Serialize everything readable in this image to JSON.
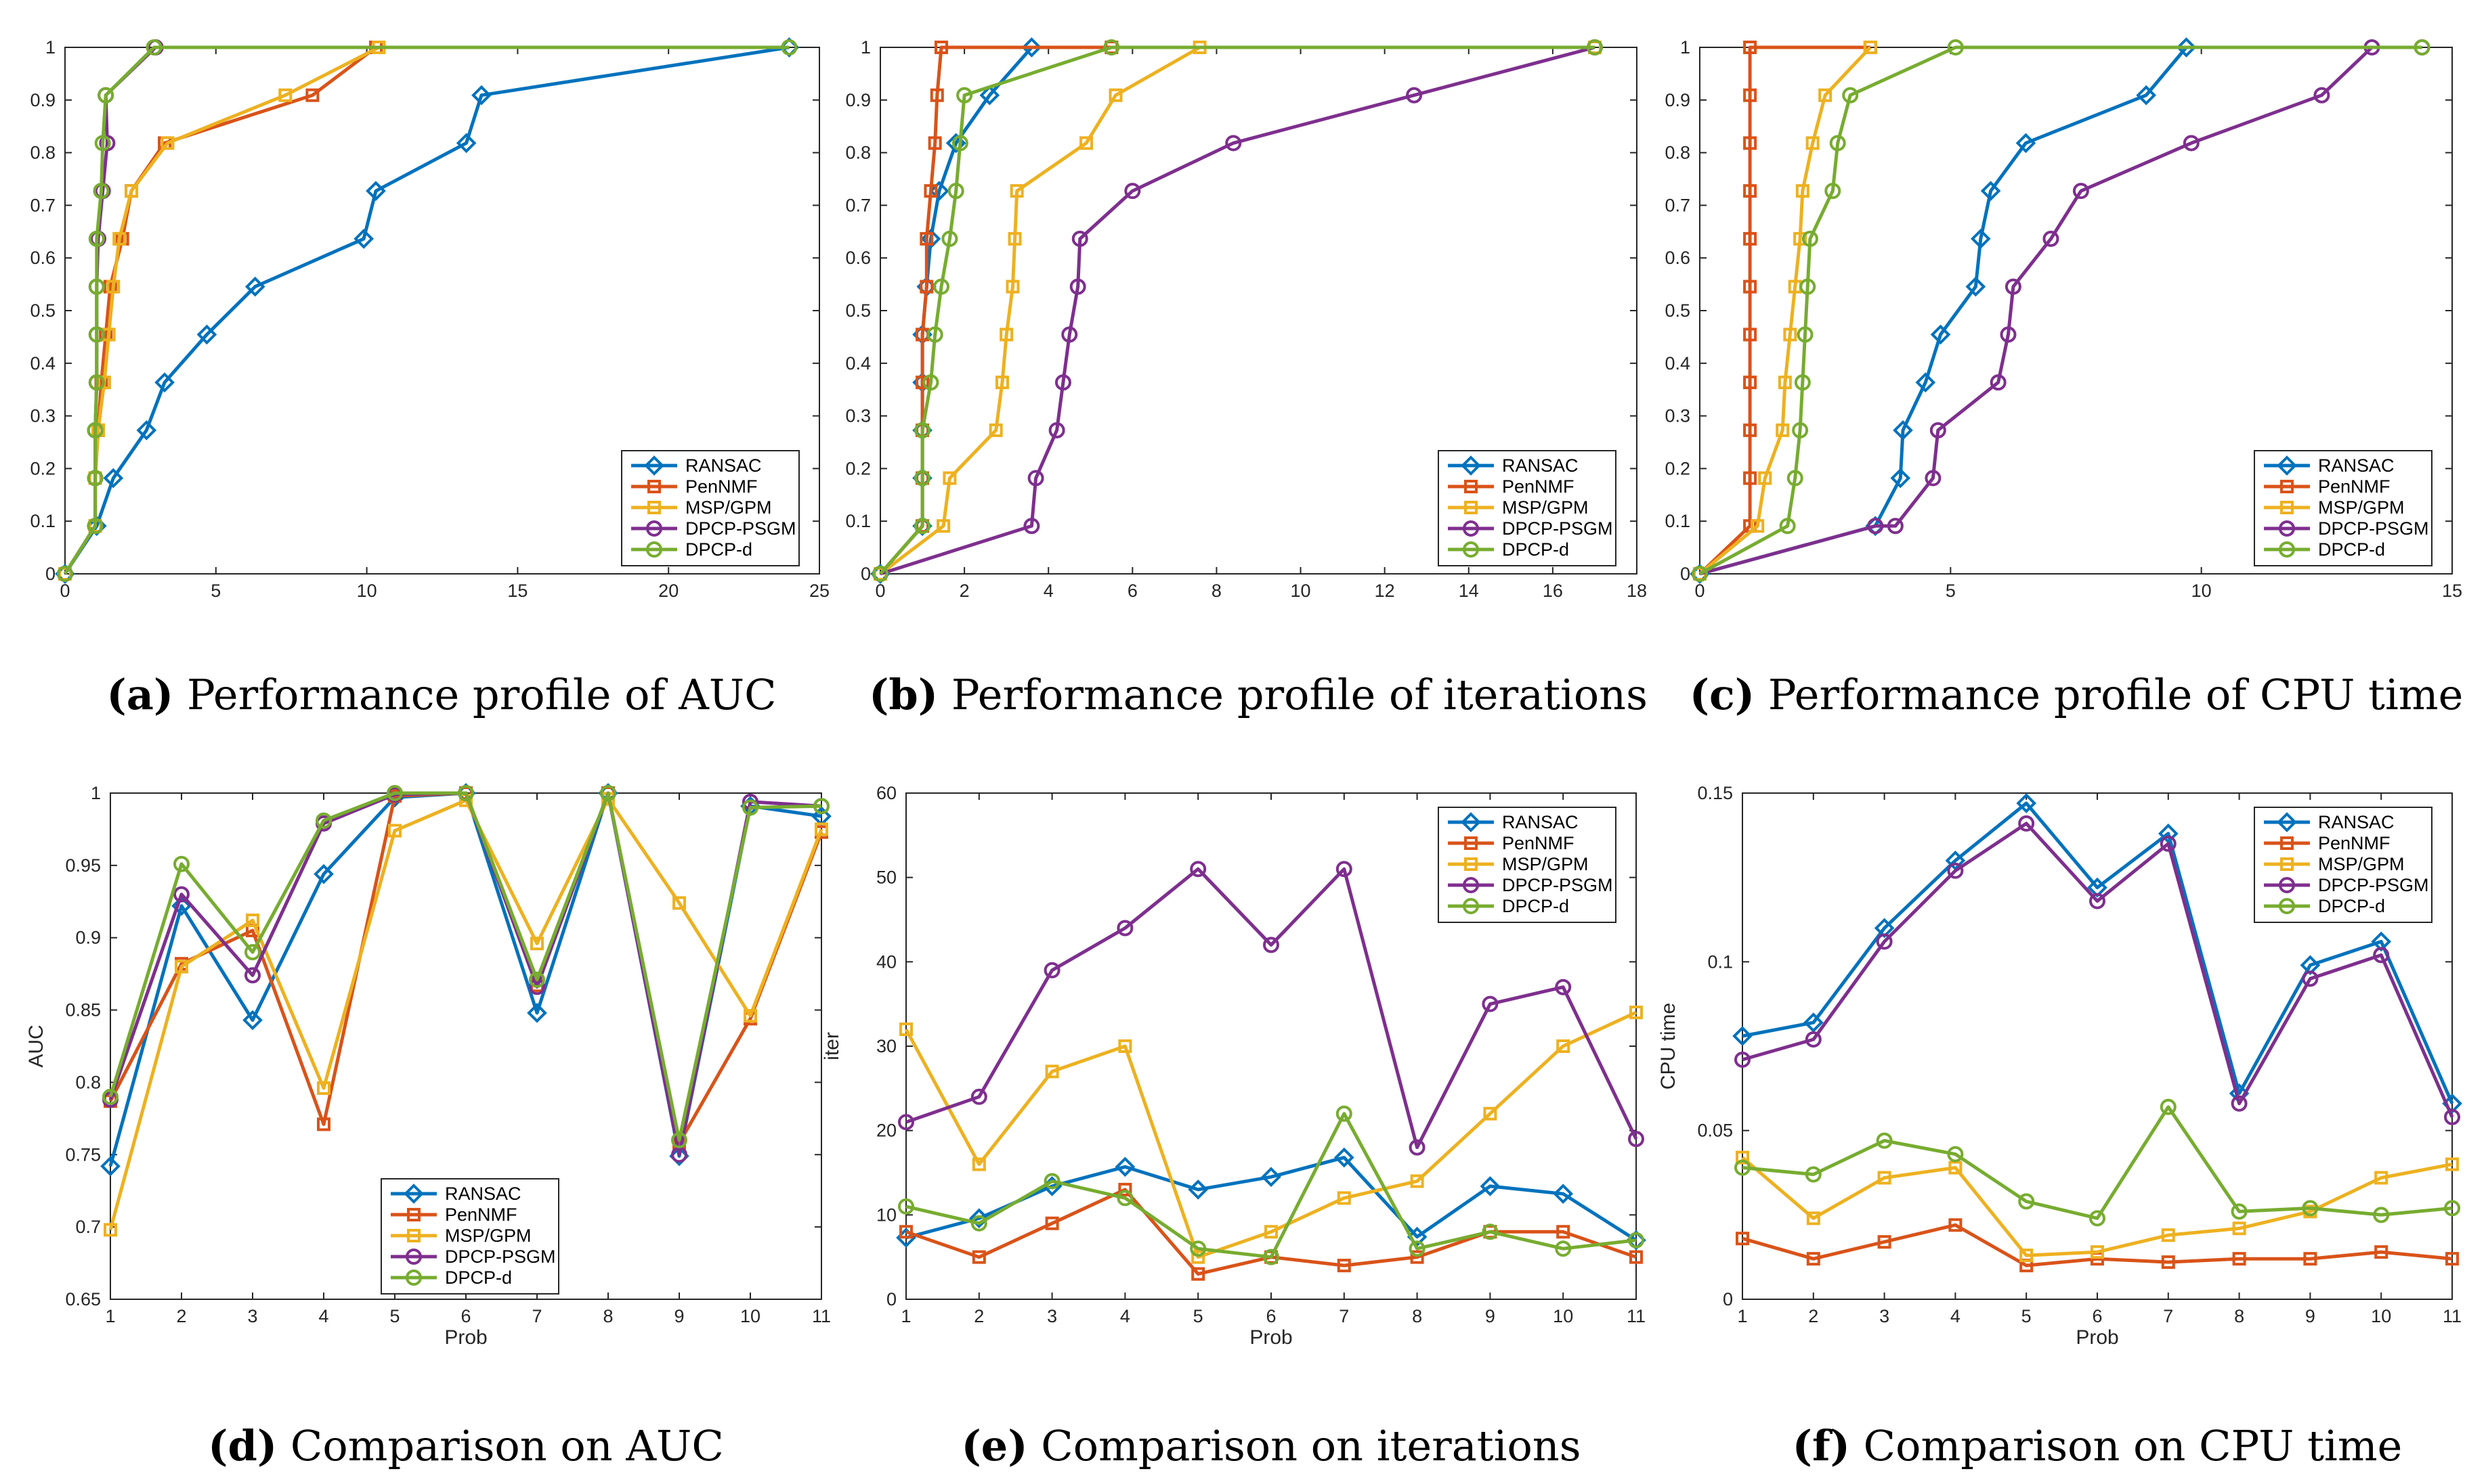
{
  "figure": {
    "series_colors": {
      "RANSAC": "#0072BD",
      "PenNMF": "#D95319",
      "MSP/GPM": "#EDB120",
      "DPCP-PSGM": "#7E2F8E",
      "DPCP-d": "#77AC30"
    },
    "series_markers": {
      "RANSAC": "diamond",
      "PenNMF": "square",
      "MSP/GPM": "square",
      "DPCP-PSGM": "circle",
      "DPCP-d": "circle"
    }
  },
  "chart_data": [
    {
      "id": "a",
      "type": "line",
      "caption_label": "(a)",
      "caption_text": "Performance profile of AUC",
      "title": "Performance profile of AUC",
      "xlabel": "",
      "ylabel": "",
      "xlim": [
        0,
        25
      ],
      "ylim": [
        0,
        1
      ],
      "xticks": [
        0,
        5,
        10,
        15,
        20,
        25
      ],
      "yticks": [
        0,
        0.1,
        0.2,
        0.3,
        0.4,
        0.5,
        0.6,
        0.7,
        0.8,
        0.9,
        1
      ],
      "legend": "bottom-right",
      "series": [
        {
          "name": "RANSAC",
          "x": [
            0,
            1.05,
            1.6,
            2.7,
            3.3,
            4.7,
            6.3,
            9.9,
            10.3,
            13.3,
            13.8,
            24
          ],
          "y": [
            0,
            0.0909,
            0.1818,
            0.2727,
            0.3636,
            0.4545,
            0.5455,
            0.6364,
            0.7273,
            0.8182,
            0.9091,
            1
          ]
        },
        {
          "name": "PenNMF",
          "x": [
            0,
            1.0,
            1.0,
            1.1,
            1.2,
            1.35,
            1.5,
            1.9,
            2.2,
            3.3,
            8.2,
            10.3
          ],
          "y": [
            0,
            0.0909,
            0.1818,
            0.2727,
            0.3636,
            0.4545,
            0.5455,
            0.6364,
            0.7273,
            0.8182,
            0.9091,
            1
          ]
        },
        {
          "name": "MSP/GPM",
          "x": [
            0,
            1.0,
            1.0,
            1.1,
            1.3,
            1.45,
            1.6,
            1.8,
            2.2,
            3.4,
            7.3,
            10.4
          ],
          "y": [
            0,
            0.0909,
            0.1818,
            0.2727,
            0.3636,
            0.4545,
            0.5455,
            0.6364,
            0.7273,
            0.8182,
            0.9091,
            1
          ]
        },
        {
          "name": "DPCP-PSGM",
          "x": [
            0,
            1.0,
            1.0,
            1.0,
            1.05,
            1.05,
            1.05,
            1.1,
            1.25,
            1.4,
            1.35,
            3.0
          ],
          "y": [
            0,
            0.0909,
            0.1818,
            0.2727,
            0.3636,
            0.4545,
            0.5455,
            0.6364,
            0.7273,
            0.8182,
            0.9091,
            1
          ]
        },
        {
          "name": "DPCP-d",
          "x": [
            0,
            1.0,
            1.0,
            1.0,
            1.05,
            1.05,
            1.05,
            1.05,
            1.2,
            1.25,
            1.35,
            2.95,
            24
          ],
          "y": [
            0,
            0.0909,
            0.1818,
            0.2727,
            0.3636,
            0.4545,
            0.5455,
            0.6364,
            0.7273,
            0.8182,
            0.9091,
            1,
            1
          ]
        }
      ]
    },
    {
      "id": "b",
      "type": "line",
      "caption_label": "(b)",
      "caption_text": "Performance profile of iterations",
      "title": "Performance profile of iterations",
      "xlabel": "",
      "ylabel": "",
      "xlim": [
        0,
        18
      ],
      "ylim": [
        0,
        1
      ],
      "xticks": [
        0,
        2,
        4,
        6,
        8,
        10,
        12,
        14,
        16,
        18
      ],
      "yticks": [
        0,
        0.1,
        0.2,
        0.3,
        0.4,
        0.5,
        0.6,
        0.7,
        0.8,
        0.9,
        1
      ],
      "legend": "bottom-right",
      "series": [
        {
          "name": "RANSAC",
          "x": [
            0,
            1.0,
            1.0,
            1.0,
            1.0,
            1.0,
            1.1,
            1.2,
            1.4,
            1.8,
            2.6,
            3.6
          ],
          "y": [
            0,
            0.0909,
            0.1818,
            0.2727,
            0.3636,
            0.4545,
            0.5455,
            0.6364,
            0.7273,
            0.8182,
            0.9091,
            1
          ]
        },
        {
          "name": "PenNMF",
          "x": [
            0,
            1.0,
            1.0,
            1.0,
            1.0,
            1.0,
            1.1,
            1.1,
            1.2,
            1.3,
            1.35,
            1.45,
            5.5
          ],
          "y": [
            0,
            0.0909,
            0.1818,
            0.2727,
            0.3636,
            0.4545,
            0.5455,
            0.6364,
            0.7273,
            0.8182,
            0.9091,
            1,
            1
          ]
        },
        {
          "name": "MSP/GPM",
          "x": [
            0,
            1.5,
            1.65,
            2.75,
            2.9,
            3.0,
            3.15,
            3.2,
            3.25,
            4.9,
            5.6,
            7.6,
            17
          ],
          "y": [
            0,
            0.0909,
            0.1818,
            0.2727,
            0.3636,
            0.4545,
            0.5455,
            0.6364,
            0.7273,
            0.8182,
            0.9091,
            1,
            1
          ]
        },
        {
          "name": "DPCP-PSGM",
          "x": [
            0,
            3.6,
            3.7,
            4.2,
            4.35,
            4.5,
            4.7,
            4.75,
            6.0,
            8.4,
            12.7,
            17
          ],
          "y": [
            0,
            0.0909,
            0.1818,
            0.2727,
            0.3636,
            0.4545,
            0.5455,
            0.6364,
            0.7273,
            0.8182,
            0.9091,
            1
          ]
        },
        {
          "name": "DPCP-d",
          "x": [
            0,
            1.0,
            1.0,
            1.0,
            1.2,
            1.3,
            1.45,
            1.65,
            1.8,
            1.9,
            2.0,
            5.5,
            17
          ],
          "y": [
            0,
            0.0909,
            0.1818,
            0.2727,
            0.3636,
            0.4545,
            0.5455,
            0.6364,
            0.7273,
            0.8182,
            0.9091,
            1,
            1
          ]
        }
      ]
    },
    {
      "id": "c",
      "type": "line",
      "caption_label": "(c)",
      "caption_text": "Performance profile of CPU time",
      "title": "Performance profile of CPU time",
      "xlabel": "",
      "ylabel": "",
      "xlim": [
        0,
        15
      ],
      "ylim": [
        0,
        1
      ],
      "xticks": [
        0,
        5,
        10,
        15
      ],
      "yticks": [
        0,
        0.1,
        0.2,
        0.3,
        0.4,
        0.5,
        0.6,
        0.7,
        0.8,
        0.9,
        1
      ],
      "legend": "bottom-right",
      "series": [
        {
          "name": "RANSAC",
          "x": [
            0,
            3.5,
            4.0,
            4.05,
            4.5,
            4.8,
            5.5,
            5.6,
            5.8,
            6.5,
            8.9,
            9.7
          ],
          "y": [
            0,
            0.0909,
            0.1818,
            0.2727,
            0.3636,
            0.4545,
            0.5455,
            0.6364,
            0.7273,
            0.8182,
            0.9091,
            1
          ]
        },
        {
          "name": "PenNMF",
          "x": [
            0,
            1.0,
            1.0,
            1.0,
            1.0,
            1.0,
            1.0,
            1.0,
            1.0,
            1.0,
            1.0,
            1.0,
            3.4
          ],
          "y": [
            0,
            0.0909,
            0.1818,
            0.2727,
            0.3636,
            0.4545,
            0.5455,
            0.6364,
            0.7273,
            0.8182,
            0.9091,
            1,
            1
          ]
        },
        {
          "name": "MSP/GPM",
          "x": [
            0,
            1.15,
            1.3,
            1.65,
            1.7,
            1.8,
            1.9,
            2.0,
            2.05,
            2.25,
            2.5,
            3.4
          ],
          "y": [
            0,
            0.0909,
            0.1818,
            0.2727,
            0.3636,
            0.4545,
            0.5455,
            0.6364,
            0.7273,
            0.8182,
            0.9091,
            1
          ]
        },
        {
          "name": "DPCP-PSGM",
          "x": [
            0,
            3.5,
            3.9,
            4.65,
            4.75,
            5.95,
            6.15,
            6.25,
            7.0,
            7.6,
            9.8,
            12.4,
            13.4,
            14.4
          ],
          "y": [
            0,
            0.0909,
            0.0909,
            0.1818,
            0.2727,
            0.3636,
            0.4545,
            0.5455,
            0.6364,
            0.7273,
            0.8182,
            0.9091,
            1,
            1
          ]
        },
        {
          "name": "DPCP-d",
          "x": [
            0,
            1.75,
            1.9,
            2.0,
            2.05,
            2.1,
            2.15,
            2.2,
            2.65,
            2.75,
            3.0,
            5.1,
            14.4
          ],
          "y": [
            0,
            0.0909,
            0.1818,
            0.2727,
            0.3636,
            0.4545,
            0.5455,
            0.6364,
            0.7273,
            0.8182,
            0.9091,
            1,
            1
          ]
        }
      ]
    },
    {
      "id": "d",
      "type": "line",
      "caption_label": "(d)",
      "caption_text": "Comparison on AUC",
      "title": "Comparison on AUC",
      "xlabel": "Prob",
      "ylabel": "AUC",
      "xlim": [
        1,
        11
      ],
      "ylim": [
        0.65,
        1
      ],
      "xticks": [
        1,
        2,
        3,
        4,
        5,
        6,
        7,
        8,
        9,
        10,
        11
      ],
      "yticks": [
        0.65,
        0.7,
        0.75,
        0.8,
        0.85,
        0.9,
        0.95,
        1
      ],
      "legend": "bottom-center",
      "series": [
        {
          "name": "RANSAC",
          "x": [
            1,
            2,
            3,
            4,
            5,
            6,
            7,
            8,
            9,
            10,
            11
          ],
          "y": [
            0.742,
            0.922,
            0.843,
            0.944,
            0.997,
            1.0,
            0.848,
            1.0,
            0.749,
            0.991,
            0.984
          ]
        },
        {
          "name": "PenNMF",
          "x": [
            1,
            2,
            3,
            4,
            5,
            6,
            7,
            8,
            9,
            10,
            11
          ],
          "y": [
            0.787,
            0.882,
            0.905,
            0.771,
            0.998,
            1.0,
            0.867,
            1.0,
            0.758,
            0.844,
            0.973
          ]
        },
        {
          "name": "MSP/GPM",
          "x": [
            1,
            2,
            3,
            4,
            5,
            6,
            7,
            8,
            9,
            10,
            11
          ],
          "y": [
            0.698,
            0.88,
            0.912,
            0.796,
            0.974,
            0.995,
            0.896,
            0.996,
            0.924,
            0.846,
            0.975
          ]
        },
        {
          "name": "DPCP-PSGM",
          "x": [
            1,
            2,
            3,
            4,
            5,
            6,
            7,
            8,
            9,
            10,
            11
          ],
          "y": [
            0.788,
            0.93,
            0.874,
            0.979,
            0.999,
            1.0,
            0.866,
            1.0,
            0.75,
            0.994,
            0.991
          ]
        },
        {
          "name": "DPCP-d",
          "x": [
            1,
            2,
            3,
            4,
            5,
            6,
            7,
            8,
            9,
            10,
            11
          ],
          "y": [
            0.79,
            0.951,
            0.89,
            0.981,
            1.0,
            1.0,
            0.871,
            1.0,
            0.76,
            0.99,
            0.991
          ]
        }
      ]
    },
    {
      "id": "e",
      "type": "line",
      "caption_label": "(e)",
      "caption_text": "Comparison on iterations",
      "title": "Comparison on iterations",
      "xlabel": "Prob",
      "ylabel": "iter",
      "xlim": [
        1,
        11
      ],
      "ylim": [
        0,
        60
      ],
      "xticks": [
        1,
        2,
        3,
        4,
        5,
        6,
        7,
        8,
        9,
        10,
        11
      ],
      "yticks": [
        0,
        10,
        20,
        30,
        40,
        50,
        60
      ],
      "legend": "top-right",
      "series": [
        {
          "name": "RANSAC",
          "x": [
            1,
            2,
            3,
            4,
            5,
            6,
            7,
            8,
            9,
            10,
            11
          ],
          "y": [
            7.3,
            9.6,
            13.4,
            15.7,
            13.0,
            14.5,
            16.8,
            7.4,
            13.4,
            12.5,
            7.0
          ]
        },
        {
          "name": "PenNMF",
          "x": [
            1,
            2,
            3,
            4,
            5,
            6,
            7,
            8,
            9,
            10,
            11
          ],
          "y": [
            8,
            5,
            9,
            13,
            3,
            5,
            4,
            5,
            8,
            8,
            5
          ]
        },
        {
          "name": "MSP/GPM",
          "x": [
            1,
            2,
            3,
            4,
            5,
            6,
            7,
            8,
            9,
            10,
            11
          ],
          "y": [
            32,
            16,
            27,
            30,
            5,
            8,
            12,
            14,
            22,
            30,
            34
          ]
        },
        {
          "name": "DPCP-PSGM",
          "x": [
            1,
            2,
            3,
            4,
            5,
            6,
            7,
            8,
            9,
            10,
            11
          ],
          "y": [
            21,
            24,
            39,
            44,
            51,
            42,
            51,
            18,
            35,
            37,
            19
          ]
        },
        {
          "name": "DPCP-d",
          "x": [
            1,
            2,
            3,
            4,
            5,
            6,
            7,
            8,
            9,
            10,
            11
          ],
          "y": [
            11,
            9,
            14,
            12,
            6,
            5,
            22,
            6,
            8,
            6,
            7
          ]
        }
      ]
    },
    {
      "id": "f",
      "type": "line",
      "caption_label": "(f)",
      "caption_text": "Comparison on CPU time",
      "title": "Comparison on CPU time",
      "xlabel": "Prob",
      "ylabel": "CPU time",
      "xlim": [
        1,
        11
      ],
      "ylim": [
        0,
        0.15
      ],
      "xticks": [
        1,
        2,
        3,
        4,
        5,
        6,
        7,
        8,
        9,
        10,
        11
      ],
      "yticks": [
        0,
        0.05,
        0.1,
        0.15
      ],
      "legend": "top-right",
      "series": [
        {
          "name": "RANSAC",
          "x": [
            1,
            2,
            3,
            4,
            5,
            6,
            7,
            8,
            9,
            10,
            11
          ],
          "y": [
            0.078,
            0.082,
            0.11,
            0.13,
            0.147,
            0.122,
            0.138,
            0.061,
            0.099,
            0.106,
            0.058
          ]
        },
        {
          "name": "PenNMF",
          "x": [
            1,
            2,
            3,
            4,
            5,
            6,
            7,
            8,
            9,
            10,
            11
          ],
          "y": [
            0.018,
            0.012,
            0.017,
            0.022,
            0.01,
            0.012,
            0.011,
            0.012,
            0.012,
            0.014,
            0.012
          ]
        },
        {
          "name": "MSP/GPM",
          "x": [
            1,
            2,
            3,
            4,
            5,
            6,
            7,
            8,
            9,
            10,
            11
          ],
          "y": [
            0.042,
            0.024,
            0.036,
            0.039,
            0.013,
            0.014,
            0.019,
            0.021,
            0.026,
            0.036,
            0.04
          ]
        },
        {
          "name": "DPCP-PSGM",
          "x": [
            1,
            2,
            3,
            4,
            5,
            6,
            7,
            8,
            9,
            10,
            11
          ],
          "y": [
            0.071,
            0.077,
            0.106,
            0.127,
            0.141,
            0.118,
            0.135,
            0.058,
            0.095,
            0.102,
            0.054
          ]
        },
        {
          "name": "DPCP-d",
          "x": [
            1,
            2,
            3,
            4,
            5,
            6,
            7,
            8,
            9,
            10,
            11
          ],
          "y": [
            0.039,
            0.037,
            0.047,
            0.043,
            0.029,
            0.024,
            0.057,
            0.026,
            0.027,
            0.025,
            0.027
          ]
        }
      ]
    }
  ]
}
